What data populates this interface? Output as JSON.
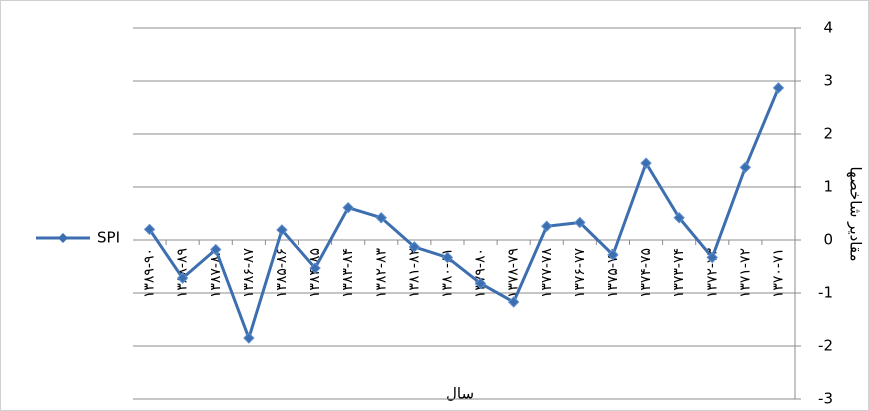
{
  "chart_data": {
    "type": "line",
    "categories": [
      "۱۳۷۰-۷۱",
      "۱۳۷۱-۷۲",
      "۱۳۷۲-۷۳",
      "۱۳۷۳-۷۴",
      "۱۳۷۴-۷۵",
      "۱۳۷۵-۷۶",
      "۱۳۷۶-۷۷",
      "۱۳۷۷-۷۸",
      "۱۳۷۸-۷۹",
      "۱۳۷۹-۸۰",
      "۱۳۸۰-۸۱",
      "۱۳۸۱-۸۲",
      "۱۳۸۲-۸۳",
      "۱۳۸۳-۸۴",
      "۱۳۸۴-۸۵",
      "۱۳۸۵-۸۶",
      "۱۳۸۶-۸۷",
      "۱۳۸۷-۸۸",
      "۱۳۸۸-۸۹",
      "۱۳۸۹-۹۰"
    ],
    "series": [
      {
        "name": "SPI",
        "color": "#3d6fb0",
        "values": [
          2.87,
          1.37,
          -0.33,
          0.42,
          1.45,
          -0.28,
          0.33,
          0.26,
          -1.17,
          -0.82,
          -0.33,
          -0.13,
          0.42,
          0.61,
          -0.53,
          0.19,
          -1.85,
          -0.18,
          -0.72,
          0.2
        ]
      }
    ],
    "x_reversed": true,
    "y_axis_side": "right",
    "ylim": [
      -3,
      4
    ],
    "yticks": [
      -3,
      -2,
      -1,
      0,
      1,
      2,
      3,
      4
    ],
    "grid": true,
    "legend": "left",
    "xlabel": "سال",
    "ylabel": "مقادیر شاخصها"
  }
}
